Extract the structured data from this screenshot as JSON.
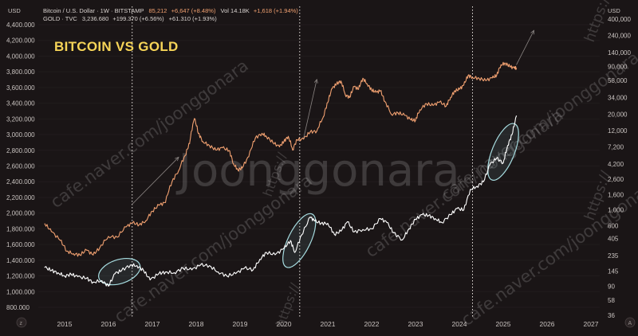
{
  "chart_data": {
    "type": "line",
    "title": "BITCOIN VS GOLD",
    "currency_left": "USD",
    "currency_right": "USD",
    "legend": [
      {
        "symbol": "Bitcoin / U.S. Dollar · 1W · BITSTAMP",
        "value": "85,212",
        "change": "+6,647 (+8.48%)",
        "vol": "Vol 14.18K",
        "vol_change": "+1,618 (+1.94%)",
        "color": "#f0a070"
      },
      {
        "symbol": "GOLD · TVC",
        "value": "3,236.680",
        "change": "+199.370 (+6.56%)",
        "extra": "+61.310 (+1.93%)",
        "color": "#ffffff"
      }
    ],
    "y_left_ticks": [
      "800.000",
      "1,000.000",
      "1,200.000",
      "1,400.000",
      "1,600.000",
      "1,800.000",
      "2,000.000",
      "2,200.000",
      "2,400.000",
      "2,600.000",
      "2,800.000",
      "3,000.000",
      "3,200.000",
      "3,400.000",
      "3,600.000",
      "3,800.000",
      "4,000.000",
      "4,200.000",
      "4,400.000"
    ],
    "y_left_values": [
      800,
      1000,
      1200,
      1400,
      1600,
      1800,
      2000,
      2200,
      2400,
      2600,
      2800,
      3000,
      3200,
      3400,
      3600,
      3800,
      4000,
      4200,
      4400
    ],
    "y_right_ticks": [
      "400,000",
      "240,000",
      "140,000",
      "90,000",
      "58,000",
      "34,000",
      "20,000",
      "12,000",
      "7,200",
      "4,200",
      "2,600",
      "1,600",
      "1,000",
      "600",
      "405",
      "235",
      "145",
      "90",
      "58",
      "36"
    ],
    "y_right_values": [
      400000,
      240000,
      140000,
      90000,
      58000,
      34000,
      20000,
      12000,
      7200,
      4200,
      2600,
      1600,
      1000,
      600,
      405,
      235,
      145,
      90,
      58,
      36
    ],
    "x_ticks": [
      "2015",
      "2016",
      "2017",
      "2018",
      "2019",
      "2020",
      "2021",
      "2022",
      "2023",
      "2024",
      "2025",
      "2026",
      "2027"
    ],
    "x_tick_years": [
      2015,
      2016,
      2017,
      2018,
      2019,
      2020,
      2021,
      2022,
      2023,
      2024,
      2025,
      2026,
      2027
    ],
    "xlim": [
      2014.4,
      2027.2
    ],
    "halving_years": [
      2016.54,
      2020.36,
      2024.3
    ],
    "series": [
      {
        "name": "Bitcoin / U.S. Dollar",
        "axis": "right",
        "scale": "log",
        "color": "#f0a070",
        "x": [
          2014.55,
          2014.7,
          2014.9,
          2015.05,
          2015.2,
          2015.35,
          2015.5,
          2015.65,
          2015.8,
          2016.0,
          2016.2,
          2016.4,
          2016.55,
          2016.7,
          2016.85,
          2017.0,
          2017.15,
          2017.3,
          2017.45,
          2017.6,
          2017.75,
          2017.85,
          2017.96,
          2018.05,
          2018.15,
          2018.3,
          2018.45,
          2018.6,
          2018.75,
          2018.85,
          2018.95,
          2019.05,
          2019.2,
          2019.35,
          2019.5,
          2019.6,
          2019.75,
          2019.9,
          2020.0,
          2020.1,
          2020.2,
          2020.3,
          2020.45,
          2020.6,
          2020.75,
          2020.9,
          2021.0,
          2021.1,
          2021.2,
          2021.3,
          2021.4,
          2021.5,
          2021.6,
          2021.7,
          2021.8,
          2021.9,
          2022.0,
          2022.1,
          2022.2,
          2022.3,
          2022.45,
          2022.6,
          2022.75,
          2022.9,
          2023.0,
          2023.1,
          2023.25,
          2023.4,
          2023.55,
          2023.7,
          2023.8,
          2023.9,
          2024.0,
          2024.1,
          2024.2,
          2024.3,
          2024.45,
          2024.6,
          2024.75,
          2024.85,
          2024.95,
          2025.05,
          2025.15,
          2025.25,
          2025.3
        ],
        "values": [
          640,
          500,
          380,
          270,
          250,
          240,
          280,
          240,
          300,
          430,
          420,
          580,
          660,
          620,
          700,
          950,
          1150,
          1250,
          2400,
          3400,
          5500,
          8000,
          17500,
          11000,
          8500,
          7500,
          6500,
          7000,
          6400,
          4200,
          3500,
          3700,
          5300,
          9500,
          11000,
          10000,
          8200,
          7200,
          8500,
          10000,
          6500,
          9000,
          9200,
          11500,
          11800,
          18500,
          29000,
          45000,
          52000,
          57000,
          37000,
          34000,
          48000,
          44000,
          62000,
          52000,
          43000,
          40000,
          42000,
          30000,
          20000,
          21000,
          19500,
          16800,
          16600,
          23000,
          28000,
          26500,
          29500,
          26000,
          34000,
          42000,
          44000,
          50000,
          68000,
          64000,
          62000,
          58000,
          63000,
          68000,
          95000,
          100000,
          90000,
          86000,
          85212
        ],
        "trend_arrows": [
          {
            "x0": 2016.55,
            "y0": 1200,
            "x1": 2017.6,
            "y1": 5200
          },
          {
            "x0": 2020.45,
            "y0": 9500,
            "x1": 2020.75,
            "y1": 60000
          },
          {
            "x0": 2025.3,
            "y0": 95000,
            "x1": 2025.7,
            "y1": 280000
          }
        ]
      },
      {
        "name": "GOLD",
        "axis": "left",
        "scale": "linear",
        "color": "#ffffff",
        "x": [
          2014.55,
          2014.7,
          2014.85,
          2015.0,
          2015.15,
          2015.3,
          2015.5,
          2015.65,
          2015.85,
          2016.0,
          2016.15,
          2016.3,
          2016.5,
          2016.65,
          2016.8,
          2016.95,
          2017.15,
          2017.3,
          2017.5,
          2017.7,
          2017.9,
          2018.1,
          2018.3,
          2018.5,
          2018.7,
          2018.9,
          2019.1,
          2019.3,
          2019.45,
          2019.6,
          2019.8,
          2020.0,
          2020.15,
          2020.25,
          2020.4,
          2020.6,
          2020.7,
          2020.85,
          2021.0,
          2021.15,
          2021.3,
          2021.45,
          2021.6,
          2021.8,
          2022.0,
          2022.2,
          2022.35,
          2022.5,
          2022.7,
          2022.85,
          2023.0,
          2023.15,
          2023.3,
          2023.45,
          2023.6,
          2023.8,
          2023.95,
          2024.1,
          2024.25,
          2024.4,
          2024.55,
          2024.7,
          2024.85,
          2025.0,
          2025.1,
          2025.2,
          2025.3
        ],
        "values": [
          1310,
          1270,
          1240,
          1200,
          1220,
          1190,
          1170,
          1120,
          1140,
          1070,
          1230,
          1270,
          1340,
          1330,
          1270,
          1150,
          1230,
          1250,
          1240,
          1300,
          1280,
          1340,
          1330,
          1250,
          1200,
          1230,
          1300,
          1280,
          1410,
          1500,
          1470,
          1550,
          1650,
          1500,
          1720,
          1950,
          1900,
          1870,
          1870,
          1730,
          1770,
          1890,
          1760,
          1790,
          1800,
          1930,
          1880,
          1750,
          1660,
          1800,
          1920,
          1980,
          1970,
          1930,
          1880,
          1980,
          2060,
          2040,
          2300,
          2340,
          2400,
          2620,
          2700,
          2640,
          2860,
          3000,
          3236.68
        ]
      }
    ],
    "highlight_regions": [
      {
        "x_center": 2016.25,
        "y_center": 1255,
        "axis": "left"
      },
      {
        "x_center": 2020.35,
        "y_center": 1650,
        "axis": "left"
      },
      {
        "x_center": 2025.0,
        "y_center": 2780,
        "axis": "left"
      }
    ]
  },
  "watermarks": {
    "center": "Joonggonara",
    "diagonal": "cafe.naver.com/joonggonara",
    "side": "https://"
  },
  "icons": {
    "bottom_left": "z-icon",
    "bottom_right": "a-icon"
  }
}
